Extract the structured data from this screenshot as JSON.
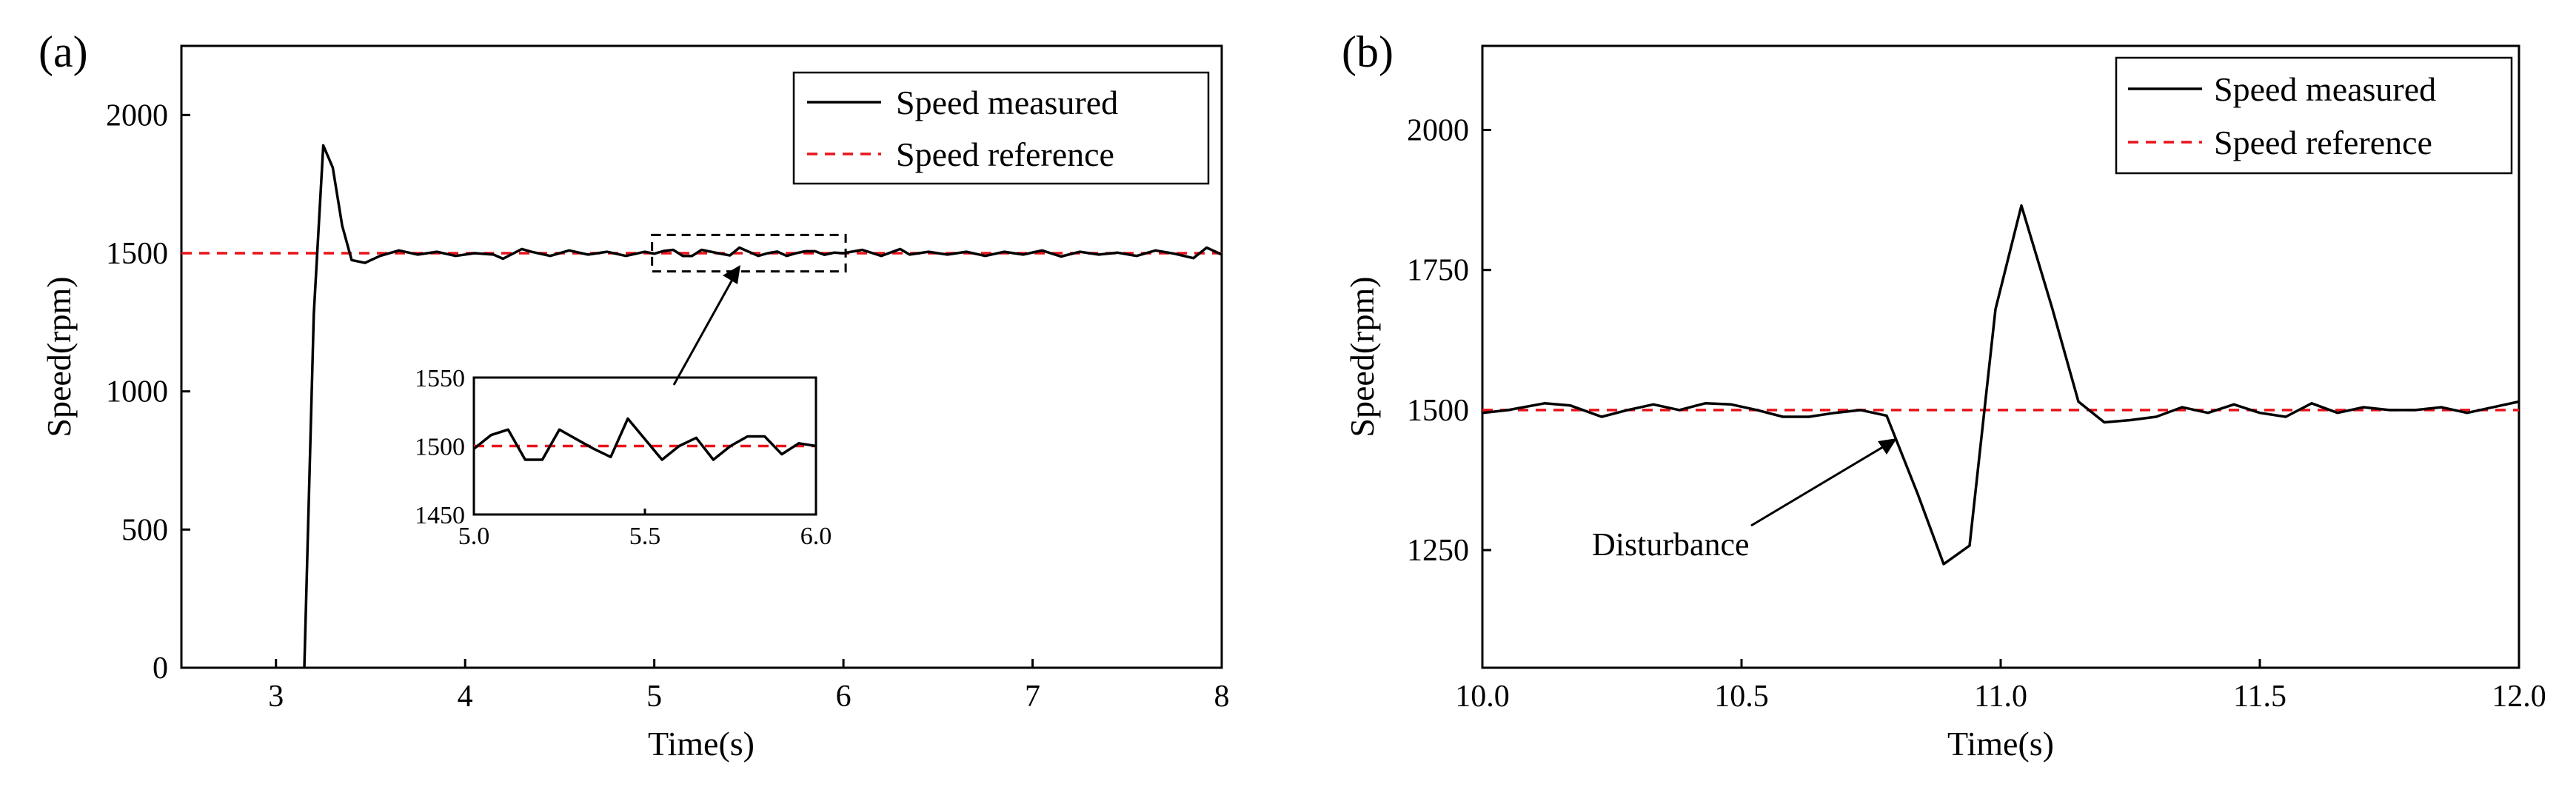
{
  "colors": {
    "measured": "#000000",
    "reference": "#e8141a"
  },
  "chart_data": [
    {
      "type": "line",
      "panel_label": "(a)",
      "xlabel": "Time(s)",
      "ylabel": "Speed(rpm)",
      "xlim": [
        2.5,
        8
      ],
      "ylim": [
        0,
        2250
      ],
      "xticks": [
        3,
        4,
        5,
        6,
        7,
        8
      ],
      "yticks": [
        0,
        500,
        1000,
        1500,
        2000
      ],
      "legend": [
        "Speed measured",
        "Speed reference"
      ],
      "legend_position": "top-right",
      "series": [
        {
          "name": "Speed measured",
          "x": [
            3.15,
            3.2,
            3.25,
            3.3,
            3.35,
            3.4,
            3.47,
            3.55,
            3.65,
            3.75,
            3.85,
            3.95,
            4.05,
            4.15,
            4.2,
            4.3,
            4.35,
            4.45,
            4.55,
            4.65,
            4.75,
            4.85,
            4.95,
            5.0,
            5.05,
            5.1,
            5.15,
            5.2,
            5.25,
            5.3,
            5.35,
            5.4,
            5.45,
            5.5,
            5.55,
            5.6,
            5.65,
            5.7,
            5.75,
            5.8,
            5.85,
            5.9,
            5.95,
            6.0,
            6.1,
            6.2,
            6.3,
            6.35,
            6.45,
            6.55,
            6.65,
            6.75,
            6.85,
            6.95,
            7.05,
            7.15,
            7.25,
            7.35,
            7.45,
            7.55,
            7.65,
            7.75,
            7.85,
            7.92,
            8.0
          ],
          "y": [
            0,
            1280,
            1890,
            1810,
            1600,
            1475,
            1465,
            1490,
            1510,
            1495,
            1505,
            1490,
            1500,
            1495,
            1480,
            1515,
            1505,
            1490,
            1510,
            1495,
            1505,
            1490,
            1505,
            1498,
            1508,
            1512,
            1490,
            1490,
            1512,
            1505,
            1498,
            1492,
            1520,
            1505,
            1490,
            1500,
            1506,
            1490,
            1500,
            1507,
            1507,
            1494,
            1502,
            1500,
            1512,
            1490,
            1515,
            1495,
            1505,
            1495,
            1505,
            1490,
            1505,
            1495,
            1510,
            1488,
            1505,
            1495,
            1502,
            1490,
            1510,
            1498,
            1482,
            1520,
            1495
          ]
        },
        {
          "name": "Speed reference",
          "x": [
            2.5,
            8.0
          ],
          "y": [
            1500,
            1500
          ]
        }
      ],
      "zoom_region": {
        "x": [
          5.0,
          6.0
        ],
        "y": [
          1450,
          1550
        ]
      },
      "inset": {
        "xlim": [
          5.0,
          6.0
        ],
        "ylim": [
          1450,
          1550
        ],
        "xticks": [
          5.0,
          5.5,
          6.0
        ],
        "xtick_labels": [
          "5.0",
          "5.5",
          "6.0"
        ],
        "yticks": [
          1450,
          1500,
          1550
        ],
        "ytick_labels": [
          "1450",
          "1500",
          "1550"
        ],
        "series": [
          {
            "name": "Speed measured",
            "x": [
              5.0,
              5.05,
              5.1,
              5.15,
              5.2,
              5.25,
              5.3,
              5.35,
              5.4,
              5.45,
              5.5,
              5.55,
              5.6,
              5.65,
              5.7,
              5.75,
              5.8,
              5.85,
              5.9,
              5.95,
              6.0
            ],
            "y": [
              1498,
              1508,
              1512,
              1490,
              1490,
              1512,
              1505,
              1498,
              1492,
              1520,
              1505,
              1490,
              1500,
              1506,
              1490,
              1500,
              1507,
              1507,
              1494,
              1502,
              1500
            ]
          },
          {
            "name": "Speed reference",
            "x": [
              5.0,
              6.0
            ],
            "y": [
              1500,
              1500
            ]
          }
        ]
      }
    },
    {
      "type": "line",
      "panel_label": "(b)",
      "xlabel": "Time(s)",
      "ylabel": "Speed(rpm)",
      "xlim": [
        10.0,
        12.0
      ],
      "ylim": [
        1040,
        2150
      ],
      "xticks": [
        10.0,
        10.5,
        11.0,
        11.5,
        12.0
      ],
      "xtick_labels": [
        "10.0",
        "10.5",
        "11.0",
        "11.5",
        "12.0"
      ],
      "yticks": [
        1250,
        1500,
        1750,
        2000
      ],
      "legend": [
        "Speed measured",
        "Speed reference"
      ],
      "legend_position": "top-right",
      "annotation": {
        "text": "Disturbance",
        "x": 10.78,
        "y": 1490
      },
      "series": [
        {
          "name": "Speed measured",
          "x": [
            10.0,
            10.05,
            10.12,
            10.17,
            10.23,
            10.28,
            10.33,
            10.38,
            10.43,
            10.48,
            10.53,
            10.58,
            10.63,
            10.68,
            10.73,
            10.78,
            10.84,
            10.89,
            10.94,
            10.99,
            11.04,
            11.1,
            11.15,
            11.2,
            11.25,
            11.3,
            11.35,
            11.4,
            11.45,
            11.5,
            11.55,
            11.6,
            11.65,
            11.7,
            11.75,
            11.8,
            11.85,
            11.9,
            11.95,
            12.0
          ],
          "y": [
            1495,
            1500,
            1512,
            1508,
            1488,
            1500,
            1510,
            1500,
            1512,
            1510,
            1500,
            1488,
            1488,
            1495,
            1500,
            1490,
            1350,
            1225,
            1258,
            1680,
            1865,
            1680,
            1515,
            1478,
            1482,
            1488,
            1505,
            1495,
            1510,
            1495,
            1488,
            1512,
            1495,
            1505,
            1500,
            1500,
            1505,
            1495,
            1505,
            1515
          ]
        },
        {
          "name": "Speed reference",
          "x": [
            10.0,
            12.0
          ],
          "y": [
            1500,
            1500
          ]
        }
      ]
    }
  ]
}
